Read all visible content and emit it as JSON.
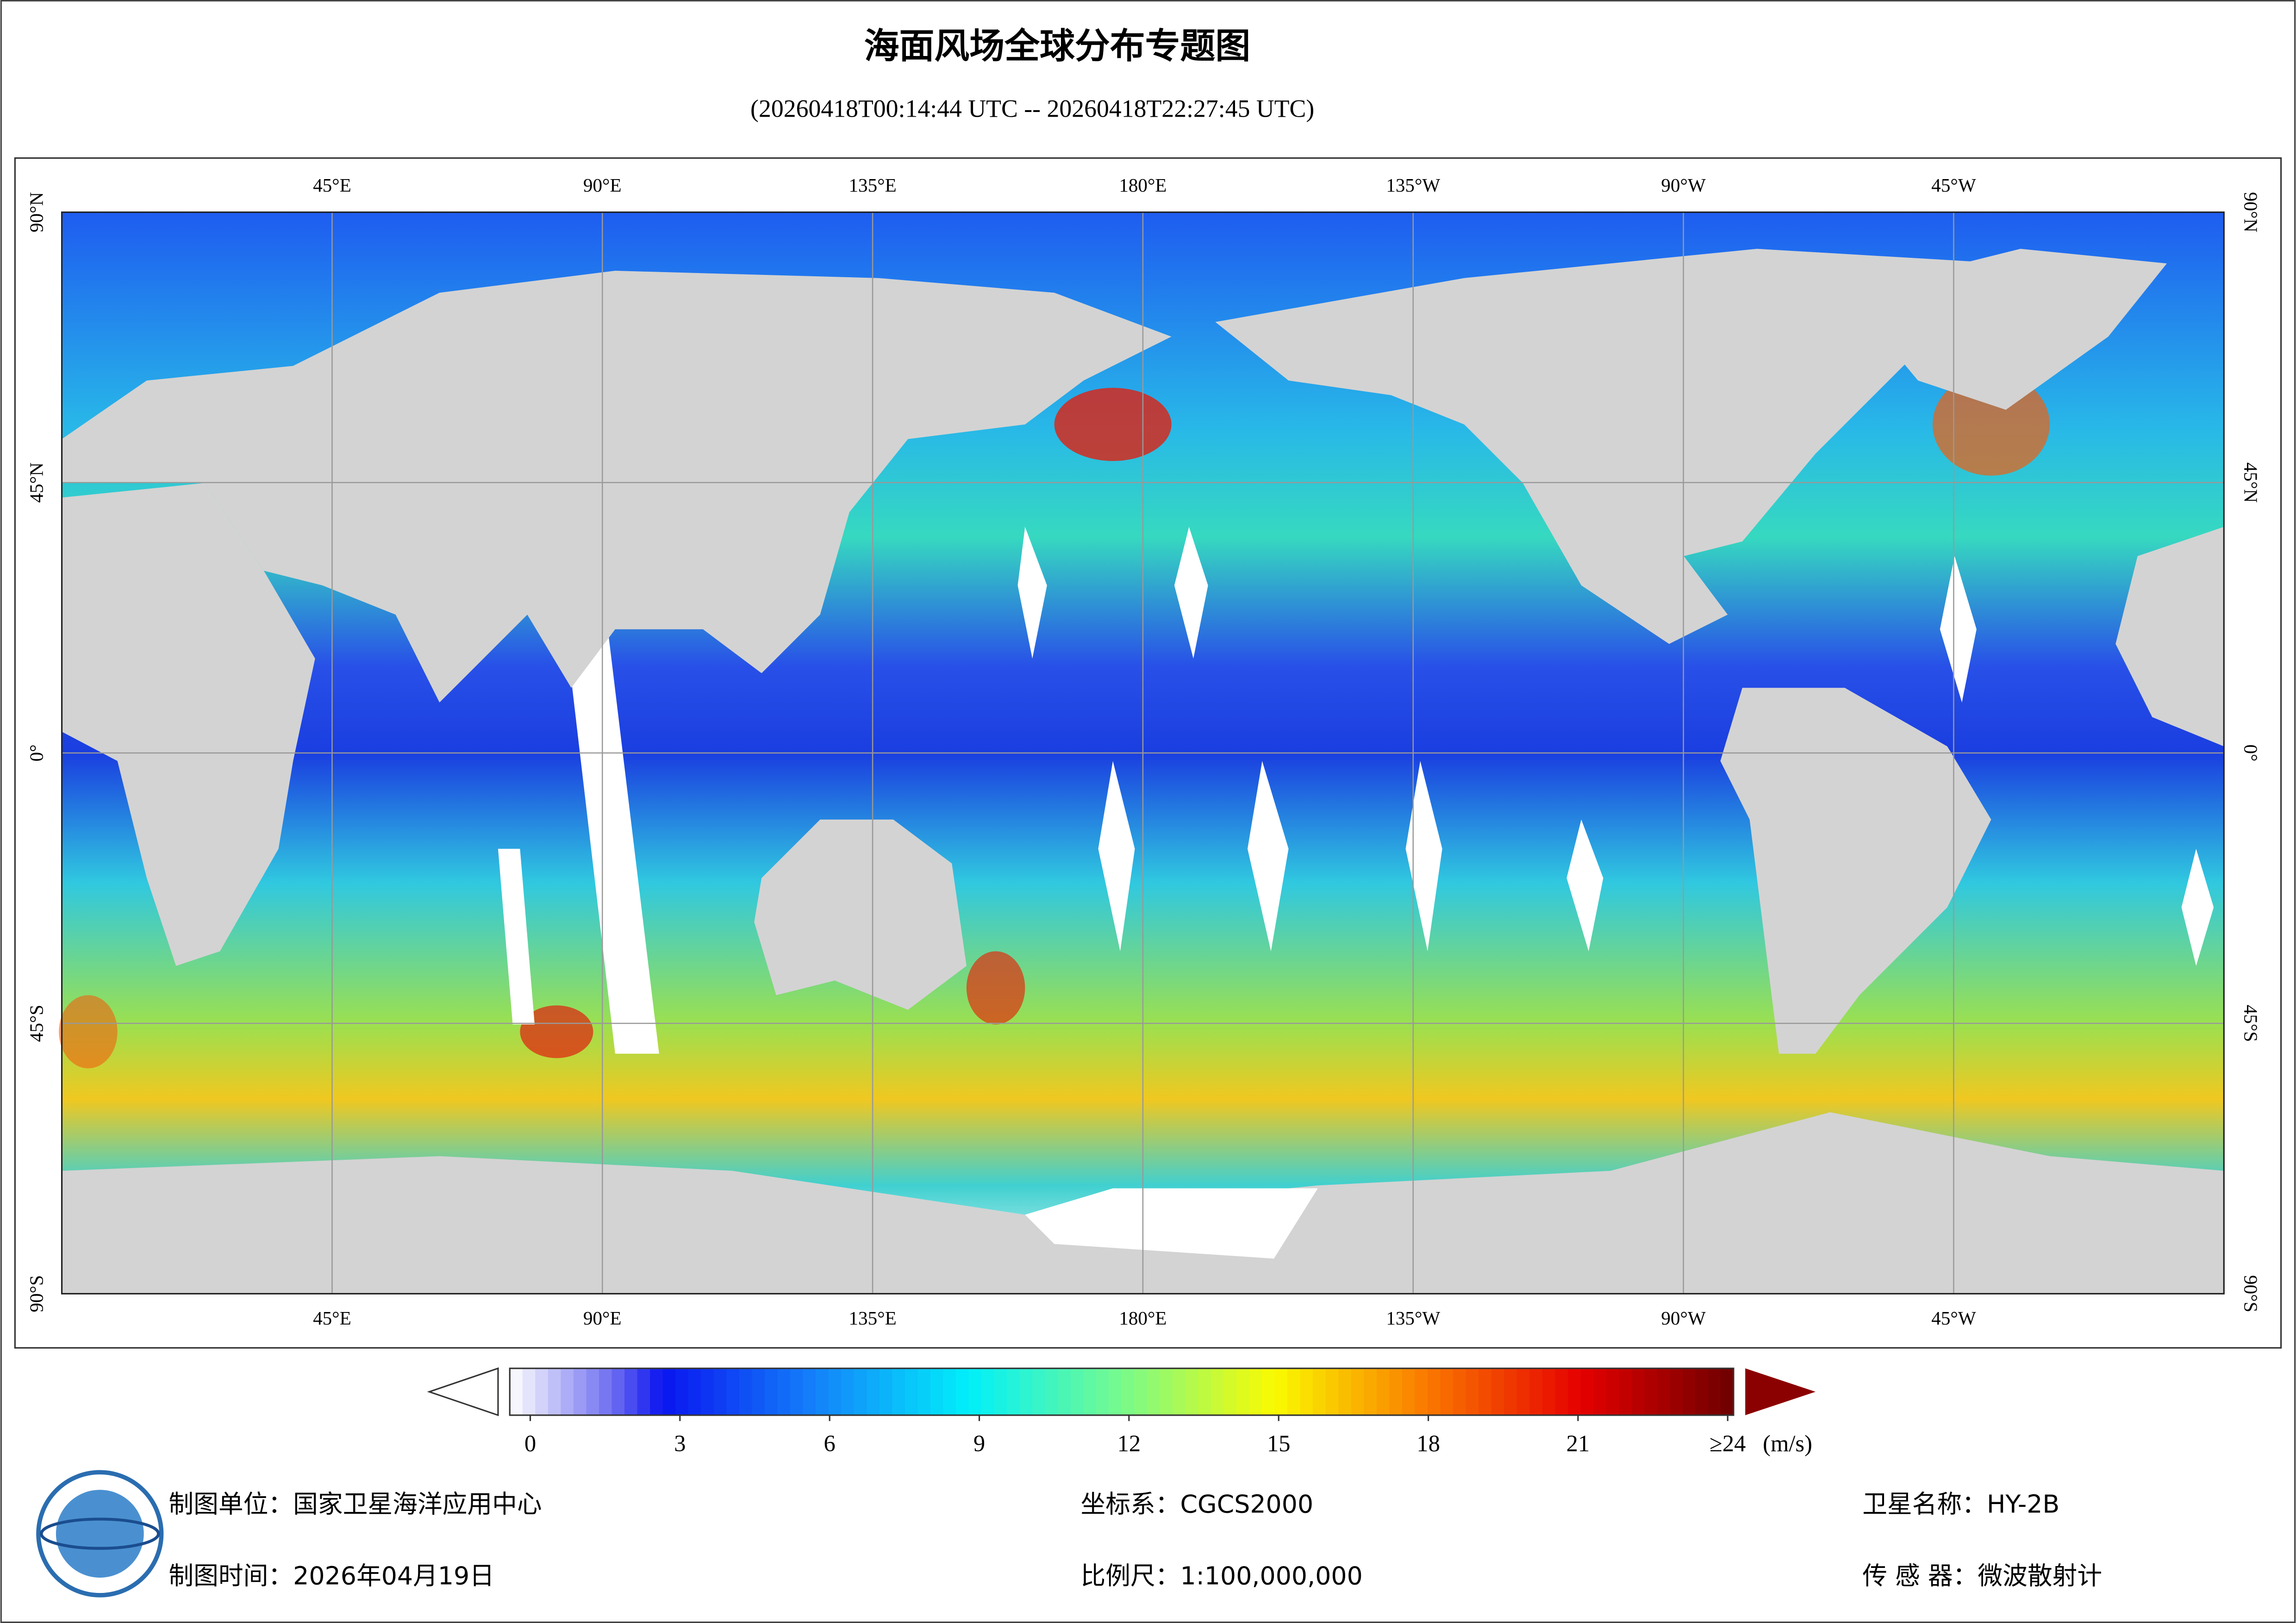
{
  "header": {
    "title": "海面风场全球分布专题图",
    "subtitle": "(20260418T00:14:44 UTC -- 20260418T22:27:45 UTC)"
  },
  "map": {
    "xlim": [
      0,
      360
    ],
    "ylim": [
      -90,
      90
    ],
    "lon_ticks": [
      {
        "value": 45,
        "label": "45°E"
      },
      {
        "value": 90,
        "label": "90°E"
      },
      {
        "value": 135,
        "label": "135°E"
      },
      {
        "value": 180,
        "label": "180°E"
      },
      {
        "value": 225,
        "label": "135°W"
      },
      {
        "value": 270,
        "label": "90°W"
      },
      {
        "value": 315,
        "label": "45°W"
      }
    ],
    "lat_ticks": [
      {
        "value": 90,
        "label": "90°N"
      },
      {
        "value": 45,
        "label": "45°N"
      },
      {
        "value": 0,
        "label": "0°"
      },
      {
        "value": -45,
        "label": "45°S"
      },
      {
        "value": -90,
        "label": "90°S"
      }
    ]
  },
  "colorbar": {
    "range": [
      0,
      24
    ],
    "ticks": [
      0,
      3,
      6,
      9,
      12,
      15,
      18,
      21,
      {
        "value": 24,
        "label": "≥24"
      }
    ],
    "unit": "(m/s)"
  },
  "footer": {
    "unit": "制图单位：国家卫星海洋应用中心",
    "date": "制图时间：2026年04月19日",
    "crs": "坐标系：CGCS2000",
    "scale": "比例尺：1:100,000,000",
    "satellite": "卫星名称：HY-2B",
    "sensor": "传 感 器：微波散射计"
  }
}
